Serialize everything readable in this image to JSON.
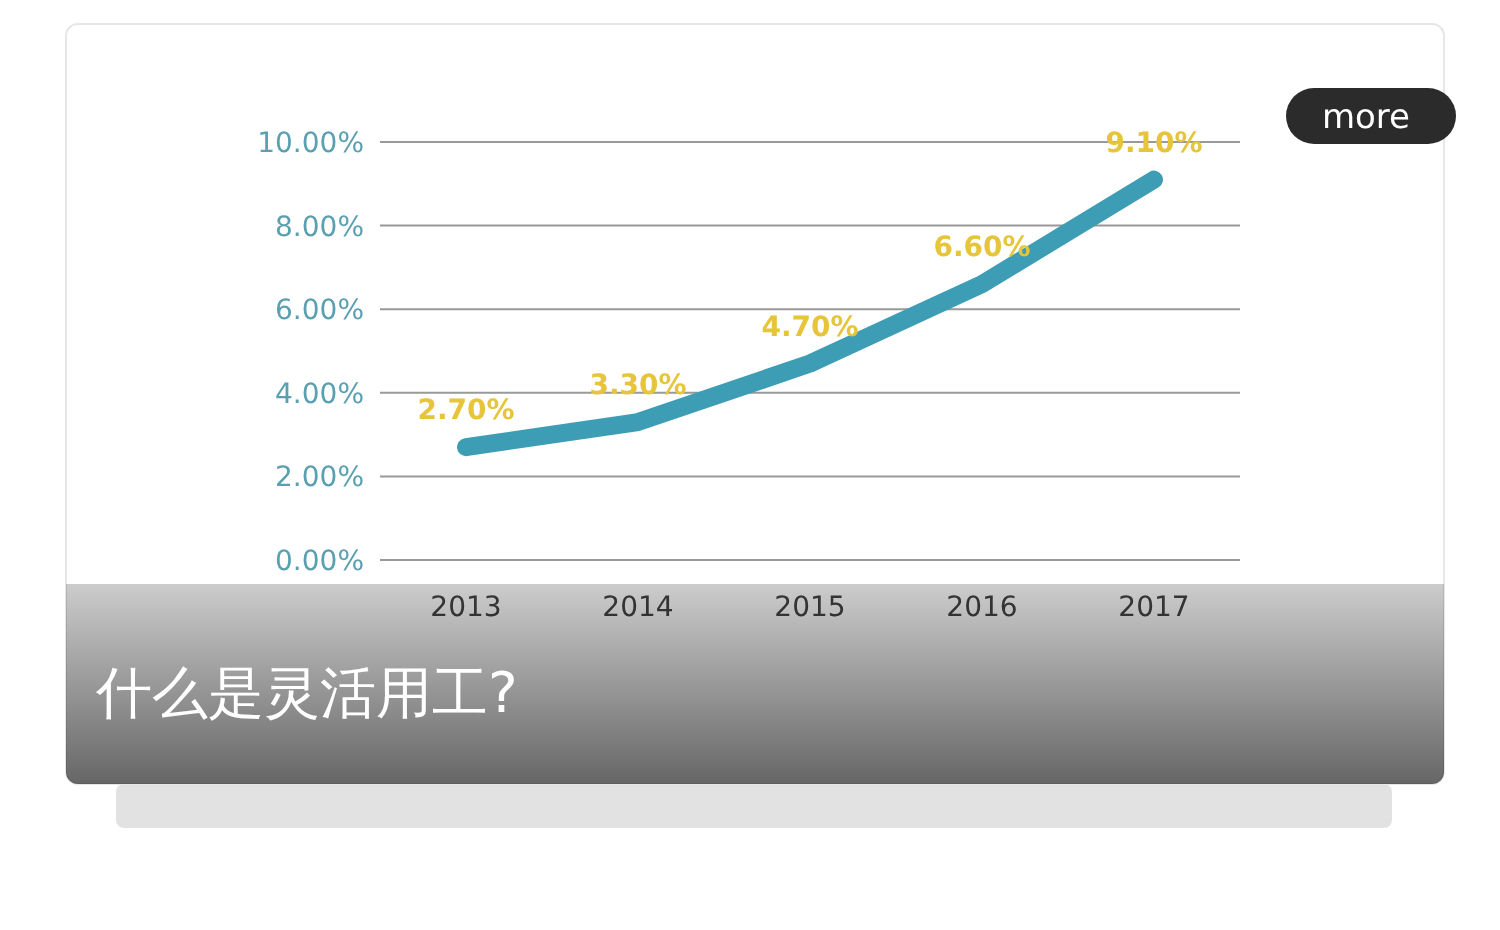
{
  "chart_data": {
    "type": "line",
    "title": "什么是灵活用工?",
    "categories": [
      "2013",
      "2014",
      "2015",
      "2016",
      "2017"
    ],
    "series": [
      {
        "color": "#3d9db5",
        "values": [
          2.7,
          3.3,
          4.7,
          6.6,
          9.1
        ],
        "value_labels": [
          "2.70%",
          "3.30%",
          "4.70%",
          "6.60%",
          "9.10%"
        ]
      }
    ],
    "ylim": [
      0,
      10
    ],
    "yticks": [
      {
        "value": 0,
        "label": "0.00%"
      },
      {
        "value": 2,
        "label": "2.00%"
      },
      {
        "value": 4,
        "label": "4.00%"
      },
      {
        "value": 6,
        "label": "6.00%"
      },
      {
        "value": 8,
        "label": "8.00%"
      },
      {
        "value": 10,
        "label": "10.00%"
      }
    ],
    "grid": "y",
    "annotations": [
      "more"
    ]
  }
}
